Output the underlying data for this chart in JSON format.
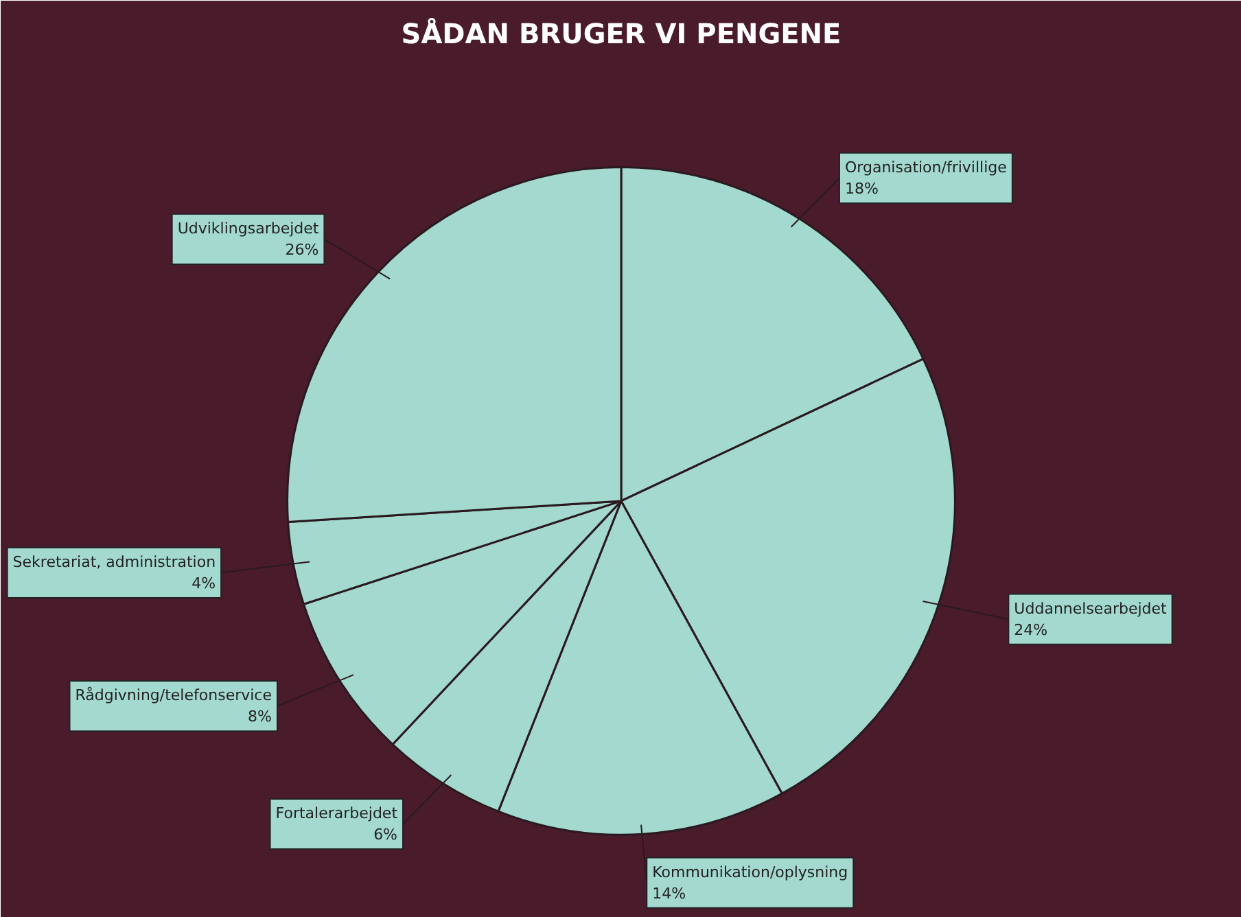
{
  "chart_data": {
    "type": "pie",
    "title": "SÅDAN BRUGER VI PENGENE",
    "categories": [
      "Organisation/frivillige",
      "Uddannelsearbejdet",
      "Kommunikation/oplysning",
      "Fortalerarbejdet",
      "Rådgivning/telefonservice",
      "Sekretariat, administration",
      "Udviklingsarbejdet"
    ],
    "values": [
      18,
      24,
      14,
      6,
      8,
      4,
      26
    ],
    "value_labels": [
      "18%",
      "24%",
      "14%",
      "6%",
      "8%",
      "4%",
      "26%"
    ],
    "colors": [
      "#a3d9cf",
      "#a3d9cf",
      "#a3d9cf",
      "#a3d9cf",
      "#a3d9cf",
      "#a3d9cf",
      "#a3d9cf"
    ]
  }
}
